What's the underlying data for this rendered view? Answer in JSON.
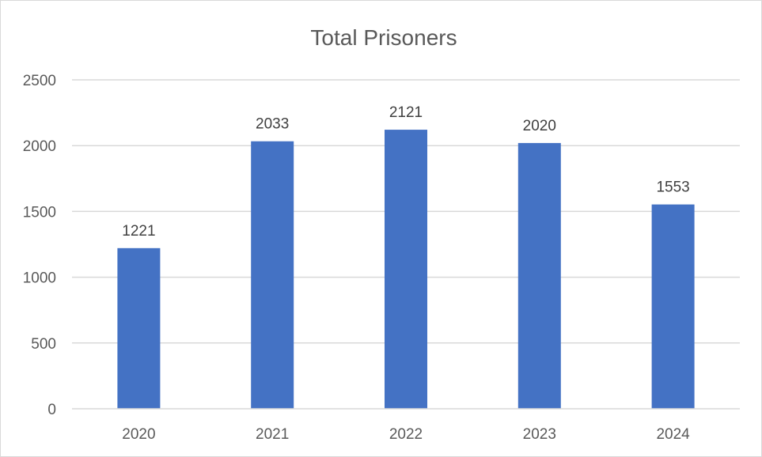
{
  "chart_data": {
    "type": "bar",
    "title": "Total Prisoners",
    "xlabel": "",
    "ylabel": "",
    "categories": [
      "2020",
      "2021",
      "2022",
      "2023",
      "2024"
    ],
    "values": [
      1221,
      2033,
      2121,
      2020,
      1553
    ],
    "data_labels": [
      "1221",
      "2033",
      "2121",
      "2020",
      "1553"
    ],
    "ylim": [
      0,
      2500
    ],
    "y_ticks": [
      0,
      500,
      1000,
      1500,
      2000,
      2500
    ],
    "y_tick_labels": [
      "0",
      "500",
      "1000",
      "1500",
      "2000",
      "2500"
    ],
    "grid": true,
    "legend": "none",
    "colors": {
      "bar": "#4472c4",
      "grid": "#d9d9d9",
      "text": "#595959"
    }
  }
}
